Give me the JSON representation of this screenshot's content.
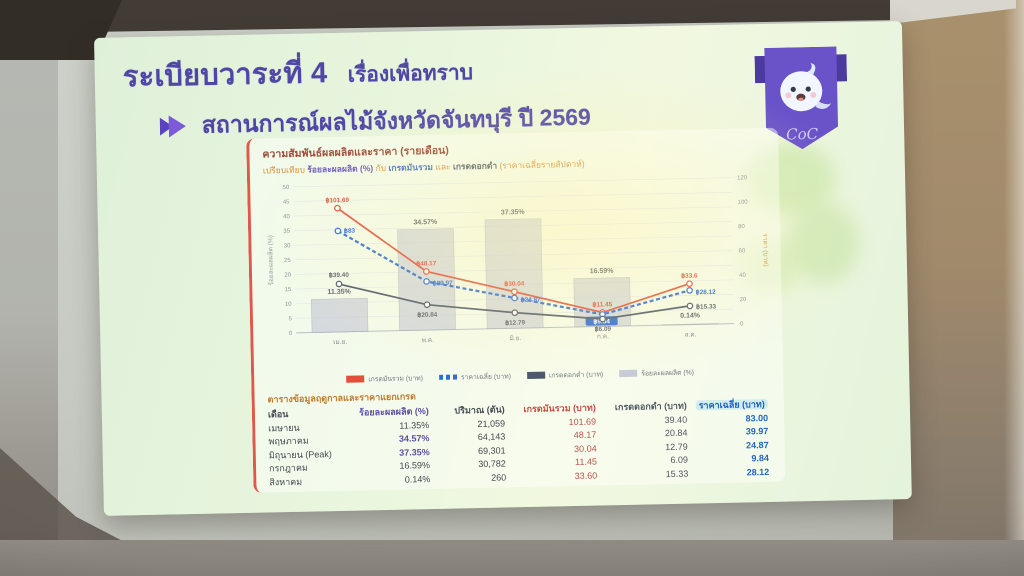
{
  "slide": {
    "title_main": "ระเบียบวาระที่ 4",
    "title_sub": "เรื่องเพื่อทราบ",
    "topic": "สถานการณ์ผลไม้จังหวัดจันทบุรี ปี 2569",
    "badge_logo_text": "CoC"
  },
  "colors": {
    "title_purple": "#4f46a8",
    "accent_red": "#e0584a",
    "line_red": "#e2503c",
    "line_blue": "#2e6bd6",
    "line_gray": "#4f5a6c",
    "bar_gray": "#c1c5d5",
    "badge_purple": "#6a52c9"
  },
  "chart_data": {
    "type": "combo_bar_line",
    "title": "ความสัมพันธ์ผลผลิตและราคา (รายเดือน)",
    "subtitle": "เปรียบเทียบ ร้อยละผลผลิต (%) กับ เกรดมันรวม และ เกรดดอกดำ (ราคาเฉลี่ยรายสัปดาห์)",
    "subtitle_parts": [
      {
        "text": "เปรียบเทียบ ",
        "color": "#d98e3a",
        "bold": false
      },
      {
        "text": "ร้อยละผลผลิต (%)",
        "color": "#6b5bb5",
        "bold": true
      },
      {
        "text": " กับ ",
        "color": "#d98e3a",
        "bold": false
      },
      {
        "text": "เกรดมันรวม",
        "color": "#4a6fc0",
        "bold": true
      },
      {
        "text": " และ ",
        "color": "#d98e3a",
        "bold": false
      },
      {
        "text": "เกรดดอกดำ",
        "color": "#566070",
        "bold": true
      },
      {
        "text": " (ราคาเฉลี่ยรายสัปดาห์)",
        "color": "#d98e3a",
        "bold": false
      }
    ],
    "categories": [
      "เม.ย.",
      "พ.ค.",
      "มิ.ย.",
      "ก.ค.",
      "ส.ค."
    ],
    "bar_series": {
      "name": "ร้อยละผลผลิต (%)",
      "axis": "left",
      "values": [
        11.35,
        34.57,
        37.35,
        16.59,
        0.14
      ],
      "labels": [
        "11.35%",
        "34.57%",
        "37.35%",
        "16.59%",
        "0.14%"
      ]
    },
    "line_series": [
      {
        "name": "เกรดมันรวม (บาท)",
        "color": "#e2503c",
        "style": "solid",
        "values": [
          101.69,
          48.17,
          30.04,
          11.45,
          33.6
        ],
        "labels": [
          "฿101.69",
          "฿48.17",
          "฿30.04",
          "฿11.45",
          "฿33.6"
        ]
      },
      {
        "name": "ราคาเฉลี่ย (บาท)",
        "color": "#2e6bd6",
        "style": "dashed",
        "highlight_index": 3,
        "values": [
          83,
          39.97,
          24.87,
          9.84,
          28.12
        ],
        "labels": [
          "฿83",
          "฿39.97",
          "฿24.87",
          "฿9.84",
          "฿28.12"
        ]
      },
      {
        "name": "เกรดดอกดำ (บาท)",
        "color": "#4f5a6c",
        "style": "solid",
        "values": [
          39.4,
          20.84,
          12.79,
          6.09,
          15.33
        ],
        "labels": [
          "฿39.40",
          "฿20.84",
          "฿12.79",
          "฿6.09",
          "฿15.33"
        ]
      }
    ],
    "left_axis": {
      "title": "ร้อยละผลผลิต (%)",
      "min": 0,
      "max": 50,
      "ticks": [
        0,
        5,
        10,
        15,
        20,
        25,
        30,
        35,
        40,
        45,
        50
      ]
    },
    "right_axis": {
      "title": "ราคา (บาท)",
      "min": 0,
      "max": 120,
      "ticks": [
        0,
        20,
        40,
        60,
        80,
        100,
        120
      ]
    },
    "legend": [
      {
        "label": "เกรดมันรวม (บาท)",
        "color": "#e2503c",
        "style": "solid"
      },
      {
        "label": "ราคาเฉลี่ย (บาท)",
        "color": "#2e6bd6",
        "style": "dashed"
      },
      {
        "label": "เกรดดอกดำ (บาท)",
        "color": "#47526b",
        "style": "solid"
      },
      {
        "label": "ร้อยละผลผลิต (%)",
        "color": "#c6cad8",
        "style": "bar"
      }
    ],
    "grid": true,
    "legend_position": "bottom"
  },
  "table": {
    "title": "ตารางข้อมูลฤดูกาลและราคาแยกเกรด",
    "headers": [
      "เดือน",
      "ร้อยละผลผลิต (%)",
      "ปริมาณ (ตัน)",
      "เกรดมันรวม (บาท)",
      "เกรดดอกดำ (บาท)",
      "ราคาเฉลี่ย (บาท)"
    ],
    "rows": [
      [
        "เมษายน",
        "11.35%",
        "21,059",
        "101.69",
        "39.40",
        "83.00"
      ],
      [
        "พฤษภาคม",
        "34.57%",
        "64,143",
        "48.17",
        "20.84",
        "39.97"
      ],
      [
        "มิถุนายน (Peak)",
        "37.35%",
        "69,301",
        "30.04",
        "12.79",
        "24.87"
      ],
      [
        "กรกฎาคม",
        "16.59%",
        "30,782",
        "11.45",
        "6.09",
        "9.84"
      ],
      [
        "สิงหาคม",
        "0.14%",
        "260",
        "33.60",
        "15.33",
        "28.12"
      ]
    ],
    "bold_percent_rows": [
      1,
      2
    ]
  }
}
